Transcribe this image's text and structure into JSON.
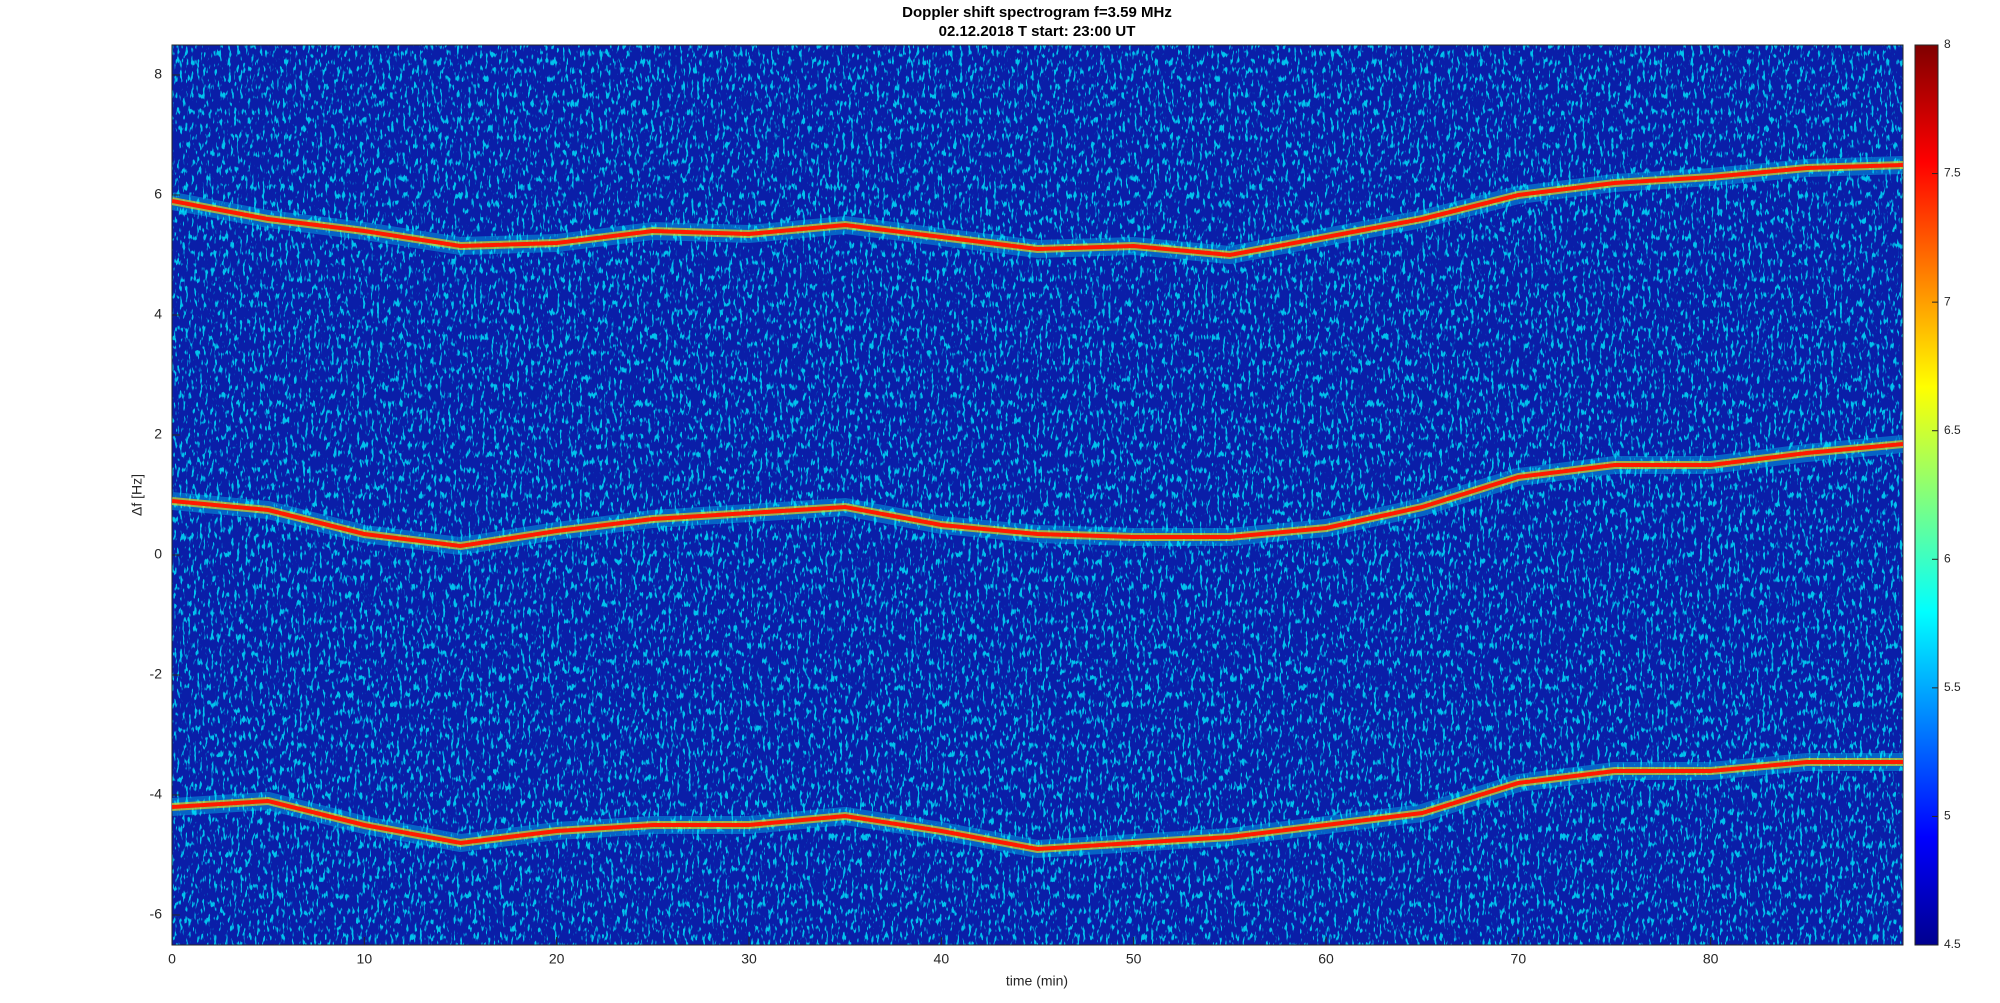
{
  "chart_data": {
    "type": "spectrogram",
    "title": "Doppler shift spectrogram f=3.59 MHz",
    "subtitle": "02.12.2018   T start: 23:00 UT",
    "x_label": "time (min)",
    "y_label": "Δf [Hz]",
    "x": [
      0,
      5,
      10,
      15,
      20,
      25,
      30,
      35,
      40,
      45,
      50,
      55,
      60,
      65,
      70,
      75,
      80,
      85,
      90
    ],
    "series": [
      {
        "color": "#ff1a00",
        "values": [
          5.9,
          5.6,
          5.4,
          5.15,
          5.2,
          5.4,
          5.35,
          5.5,
          5.3,
          5.1,
          5.15,
          5.0,
          5.3,
          5.6,
          6.0,
          6.2,
          6.3,
          6.45,
          6.5
        ]
      },
      {
        "color": "#ff1a00",
        "values": [
          0.9,
          0.75,
          0.35,
          0.15,
          0.4,
          0.6,
          0.7,
          0.8,
          0.5,
          0.35,
          0.3,
          0.3,
          0.45,
          0.8,
          1.3,
          1.5,
          1.5,
          1.7,
          1.85
        ]
      },
      {
        "color": "#ff1a00",
        "values": [
          -4.2,
          -4.1,
          -4.5,
          -4.8,
          -4.6,
          -4.5,
          -4.5,
          -4.35,
          -4.6,
          -4.9,
          -4.8,
          -4.7,
          -4.5,
          -4.3,
          -3.8,
          -3.6,
          -3.6,
          -3.45,
          -3.45
        ]
      }
    ],
    "xlim": [
      0,
      90
    ],
    "xticks": [
      0,
      10,
      20,
      30,
      40,
      50,
      60,
      70,
      80
    ],
    "ylim": [
      -6.5,
      8.5
    ],
    "yticks": [
      -6,
      -4,
      -2,
      0,
      2,
      4,
      6,
      8
    ],
    "colorbar": {
      "lim": [
        4.5,
        8
      ],
      "ticks": [
        4.5,
        5,
        5.5,
        6,
        6.5,
        7,
        7.5,
        8
      ]
    }
  }
}
